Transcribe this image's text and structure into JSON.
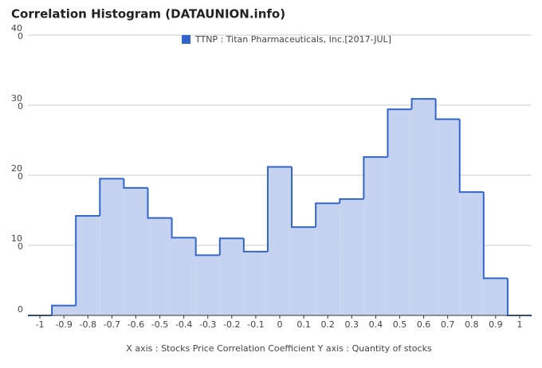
{
  "chart_data": {
    "type": "histogram",
    "title": "Correlation Histogram (DATAUNION.info)",
    "x_label": "X axis : Stocks Price Correlation Coefficient  Y axis : Quantity of stocks",
    "series": [
      {
        "name": "TTNP : Titan Pharmaceuticals, Inc.[2017-JUL]",
        "color": "#3366cc",
        "values": [
          0,
          14,
          142,
          195,
          182,
          139,
          111,
          86,
          110,
          91,
          212,
          126,
          160,
          166,
          226,
          294,
          309,
          280,
          176,
          53,
          0
        ]
      }
    ],
    "bins": [
      -1.05,
      -0.95,
      -0.85,
      -0.75,
      -0.65,
      -0.55,
      -0.45,
      -0.35,
      -0.25,
      -0.15,
      -0.05,
      0.05,
      0.15,
      0.25,
      0.35,
      0.45,
      0.55,
      0.65,
      0.75,
      0.85,
      0.95,
      1.05
    ],
    "xlim": [
      -1.05,
      1.05
    ],
    "xticks": [
      -1,
      -0.9,
      -0.8,
      -0.7,
      -0.6,
      -0.5,
      -0.4,
      -0.3,
      -0.2,
      -0.1,
      0,
      0.1,
      0.2,
      0.3,
      0.4,
      0.5,
      0.6,
      0.7,
      0.8,
      0.9,
      1
    ],
    "ylim": [
      0,
      400
    ],
    "yticks": [
      0,
      100,
      200,
      300,
      400
    ],
    "grid": true
  }
}
